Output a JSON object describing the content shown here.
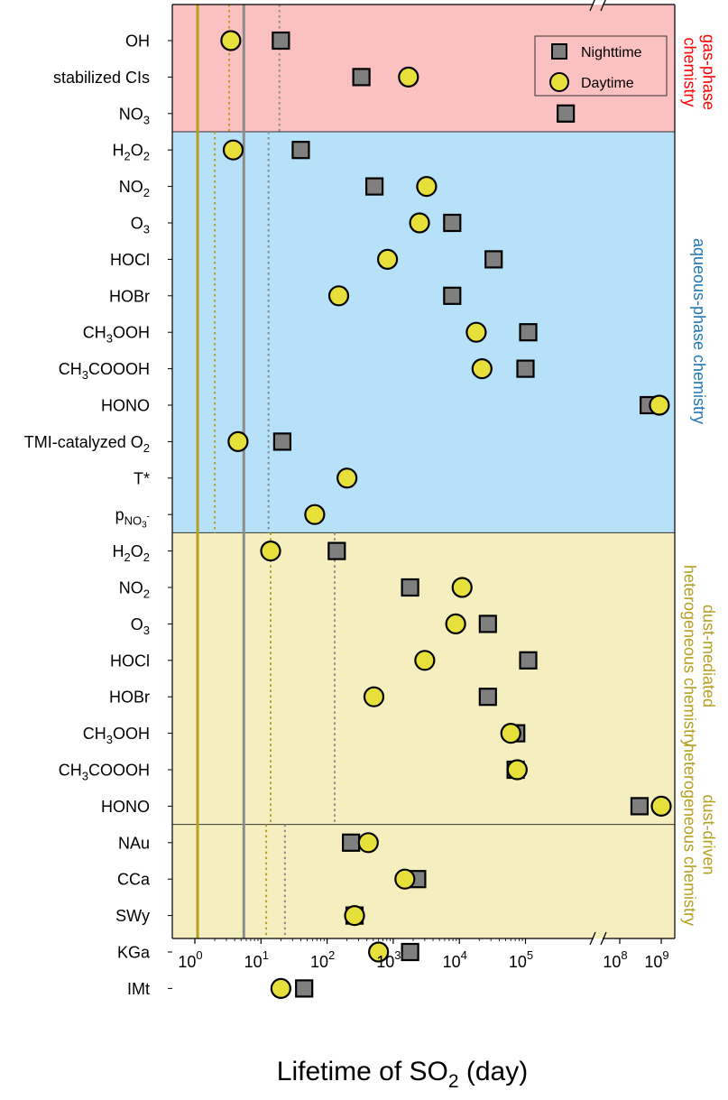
{
  "chart_data": {
    "type": "scatter",
    "xlabel": "Lifetime of SO₂ (day)",
    "x_scale": "log",
    "x_ticks": [
      {
        "value": 1,
        "base": "10",
        "exp": "0"
      },
      {
        "value": 10,
        "base": "10",
        "exp": "1"
      },
      {
        "value": 100,
        "base": "10",
        "exp": "2"
      },
      {
        "value": 1000,
        "base": "10",
        "exp": "3"
      },
      {
        "value": 10000,
        "base": "10",
        "exp": "4"
      },
      {
        "value": 100000,
        "base": "10",
        "exp": "5"
      },
      {
        "value": 100000000,
        "base": "10",
        "exp": "8"
      },
      {
        "value": 1000000000,
        "base": "10",
        "exp": "9"
      }
    ],
    "axis_break": "between 10^5 and 10^8",
    "legend": {
      "placement": "top-right",
      "entries": [
        {
          "label": "Nighttime",
          "marker": "square",
          "color": "#7f7f7f"
        },
        {
          "label": "Daytime",
          "marker": "circle",
          "color": "#e8e03a"
        }
      ]
    },
    "regions": [
      {
        "name": "gas-phase chemistry",
        "lines": [
          "gas-phase",
          "chemistry"
        ],
        "color": "#ff0000",
        "background": "#fbc0c0",
        "rows": [
          0,
          2
        ]
      },
      {
        "name": "aqueous-phase chemistry",
        "lines": [
          "aqueous-phase chemistry"
        ],
        "color": "#1f77b4",
        "background": "#b7e1f8",
        "rows": [
          3,
          13
        ]
      },
      {
        "name": "dust-mediated heterogeneous chemistry",
        "lines": [
          "dust-mediated",
          "heterogeneous chemistry"
        ],
        "color": "#b5a020",
        "background": "#f5efbf",
        "rows": [
          14,
          21
        ]
      },
      {
        "name": "dust-driven heterogeneous chemistry",
        "lines": [
          "dust-driven",
          "heterogeneous chemistry"
        ],
        "color": "#b5a020",
        "background": "#f5efbf",
        "rows": [
          22,
          26
        ]
      }
    ],
    "vertical_lines": [
      {
        "x": 1.1,
        "style": "solid",
        "color": "#b5a020"
      },
      {
        "x": 5.5,
        "style": "solid",
        "color": "#8c8c8c"
      },
      {
        "x": 3.3,
        "style": "dotted",
        "color": "#b5a020",
        "rows": [
          0,
          2
        ]
      },
      {
        "x": 19,
        "style": "dotted",
        "color": "#8c8c8c",
        "rows": [
          0,
          2
        ]
      },
      {
        "x": 2.0,
        "style": "dotted",
        "color": "#b5a020",
        "rows": [
          3,
          13
        ]
      },
      {
        "x": 13,
        "style": "dotted",
        "color": "#8c8c8c",
        "rows": [
          3,
          13
        ]
      },
      {
        "x": 14,
        "style": "dotted",
        "color": "#b5a020",
        "rows": [
          14,
          21
        ]
      },
      {
        "x": 130,
        "style": "dotted",
        "color": "#8c8c8c",
        "rows": [
          14,
          21
        ]
      },
      {
        "x": 12,
        "style": "dotted",
        "color": "#b5a020",
        "rows": [
          22,
          26
        ]
      },
      {
        "x": 23,
        "style": "dotted",
        "color": "#8c8c8c",
        "rows": [
          22,
          26
        ]
      }
    ],
    "rows": [
      {
        "label": "OH",
        "sub": "",
        "tail": "",
        "night": 20,
        "day": 3.5
      },
      {
        "label": "stabilized CIs",
        "sub": "",
        "tail": "",
        "night": 330,
        "day": 1700
      },
      {
        "label": "NO",
        "sub": "3",
        "tail": "",
        "night": 5000000,
        "day": null
      },
      {
        "label": "H",
        "sub": "2",
        "tail": "O",
        "sub2": "2",
        "night": 40,
        "day": 3.8
      },
      {
        "label": "NO",
        "sub": "2",
        "tail": "",
        "night": 520,
        "day": 3200
      },
      {
        "label": "O",
        "sub": "3",
        "tail": "",
        "night": 7800,
        "day": 2500
      },
      {
        "label": "HOCl",
        "sub": "",
        "tail": "",
        "night": 33000,
        "day": 820
      },
      {
        "label": "HOBr",
        "sub": "",
        "tail": "",
        "night": 7800,
        "day": 150
      },
      {
        "label": "CH",
        "sub": "3",
        "tail": "OOH",
        "night": 110000,
        "day": 18000
      },
      {
        "label": "CH",
        "sub": "3",
        "tail": "COOOH",
        "night": 100000,
        "day": 22000
      },
      {
        "label": "HONO",
        "sub": "",
        "tail": "",
        "night": 500000000,
        "day": 900000000
      },
      {
        "label": "TMI-catalyzed O",
        "sub": "2",
        "tail": "",
        "night": 21,
        "day": 4.5
      },
      {
        "label": "T*",
        "sub": "",
        "tail": "",
        "night": null,
        "day": 200
      },
      {
        "label": "p",
        "sub": "NO3-",
        "tail": "",
        "night": null,
        "day": 65
      },
      {
        "label": "H",
        "sub": "2",
        "tail": "O",
        "sub2": "2",
        "night": 140,
        "day": 14
      },
      {
        "label": "NO",
        "sub": "2",
        "tail": "",
        "night": 1800,
        "day": 11000
      },
      {
        "label": "O",
        "sub": "3",
        "tail": "",
        "night": 27000,
        "day": 8800
      },
      {
        "label": "HOCl",
        "sub": "",
        "tail": "",
        "night": 110000,
        "day": 3000
      },
      {
        "label": "HOBr",
        "sub": "",
        "tail": "",
        "night": 27000,
        "day": 510
      },
      {
        "label": "CH",
        "sub": "3",
        "tail": "OOH",
        "night": 320000,
        "day": 60000
      },
      {
        "label": "CH",
        "sub": "3",
        "tail": "COOOH",
        "night": 310000,
        "day": 75000
      },
      {
        "label": "HONO",
        "sub": "",
        "tail": "",
        "night": 300000000,
        "day": 1000000000
      },
      {
        "label": "NAu",
        "sub": "",
        "tail": "",
        "night": 230,
        "day": 420
      },
      {
        "label": "CCa",
        "sub": "",
        "tail": "",
        "night": 2300,
        "day": 1500
      },
      {
        "label": "SWy",
        "sub": "",
        "tail": "",
        "night": 260,
        "day": 260
      },
      {
        "label": "KGa",
        "sub": "",
        "tail": "",
        "night": 1800,
        "day": 600
      },
      {
        "label": "IMt",
        "sub": "",
        "tail": "",
        "night": 45,
        "day": 20
      }
    ]
  }
}
